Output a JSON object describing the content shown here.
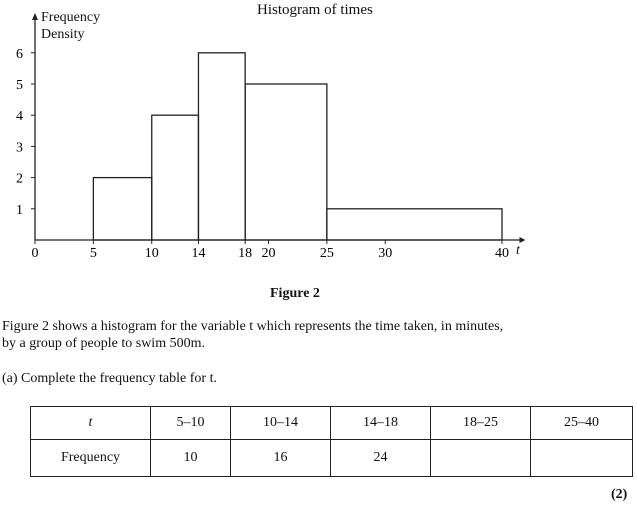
{
  "chart_data": {
    "type": "histogram",
    "title": "Histogram of times",
    "ylabel": "Frequency Density",
    "xlabel": "t",
    "xlim": [
      0,
      40
    ],
    "ylim": [
      0,
      6
    ],
    "x_ticks": [
      0,
      5,
      10,
      14,
      18,
      20,
      25,
      30,
      40
    ],
    "y_ticks": [
      1,
      2,
      3,
      4,
      5,
      6
    ],
    "bins": [
      {
        "from": 5,
        "to": 10,
        "density": 2
      },
      {
        "from": 10,
        "to": 14,
        "density": 4
      },
      {
        "from": 14,
        "to": 18,
        "density": 6
      },
      {
        "from": 18,
        "to": 25,
        "density": 5
      },
      {
        "from": 25,
        "to": 40,
        "density": 1
      }
    ]
  },
  "figure_label": "Figure 2",
  "intro_line1": "Figure 2 shows a histogram for the variable t which represents the time taken, in minutes,",
  "intro_line2": "by a group of people to swim 500m.",
  "question_a": "(a)  Complete the frequency table for t.",
  "table": {
    "header": [
      "t",
      "5–10",
      "10–14",
      "14–18",
      "18–25",
      "25–40"
    ],
    "row": [
      "Frequency",
      "10",
      "16",
      "24",
      "",
      ""
    ]
  },
  "marks": "(2)"
}
